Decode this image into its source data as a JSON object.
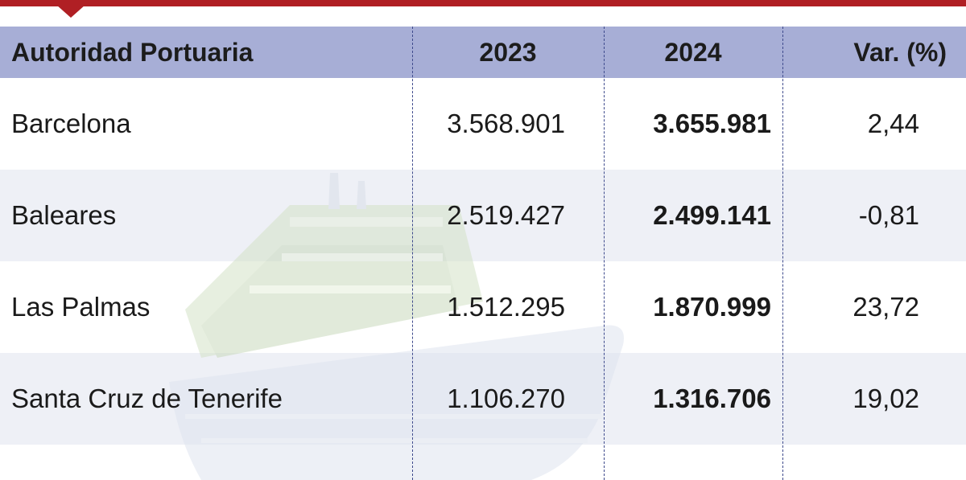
{
  "table": {
    "columns": [
      "Autoridad Portuaria",
      "2023",
      "2024",
      "Var. (%)"
    ],
    "rows": [
      {
        "port": "Barcelona",
        "y2023": "3.568.901",
        "y2024": "3.655.981",
        "var": "2,44"
      },
      {
        "port": "Baleares",
        "y2023": "2.519.427",
        "y2024": "2.499.141",
        "var": "-0,81"
      },
      {
        "port": "Las Palmas",
        "y2023": "1.512.295",
        "y2024": "1.870.999",
        "var": "23,72"
      },
      {
        "port": "Santa Cruz de Tenerife",
        "y2023": "1.106.270",
        "y2024": "1.316.706",
        "var": "19,02"
      }
    ]
  },
  "colors": {
    "accent_bar": "#b01f24",
    "header_bg": "#a7aed6",
    "alt_row_bg": "#eef0f6",
    "divider": "#3e4a8c"
  },
  "watermark_icon": "cruise-ship-icon"
}
